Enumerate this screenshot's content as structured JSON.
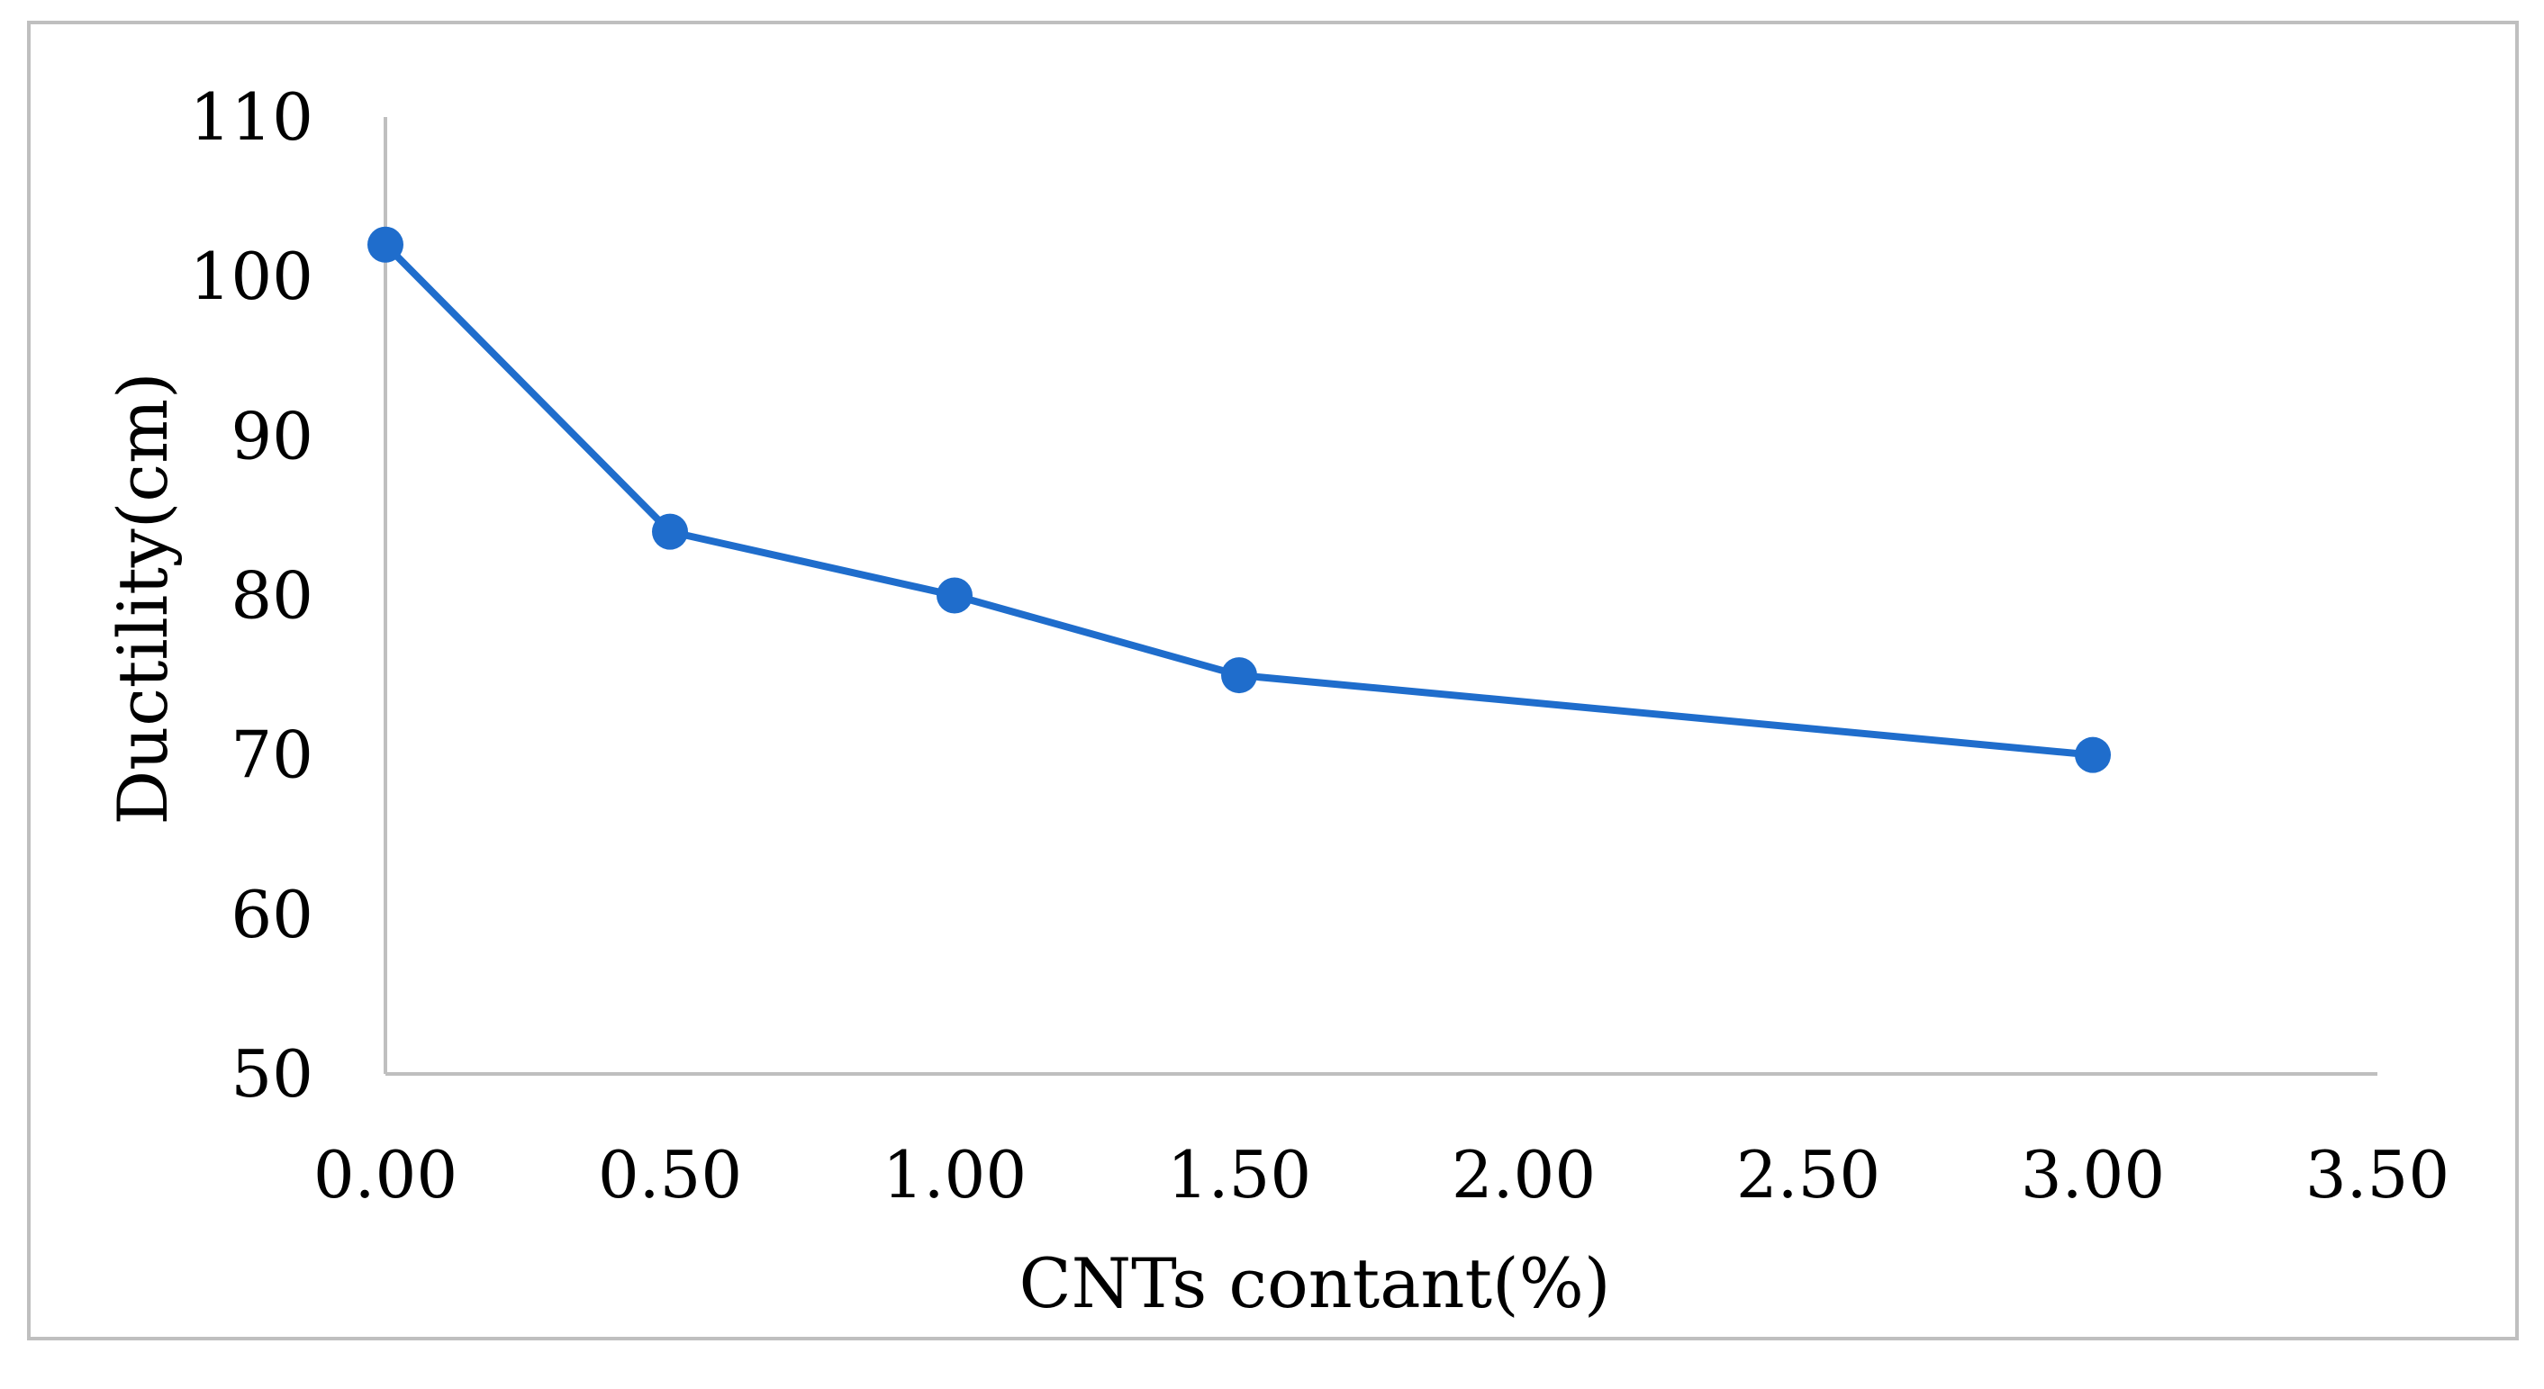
{
  "chart_data": {
    "type": "line",
    "title": "",
    "xlabel": "CNTs contant(%)",
    "ylabel": "Ductility(cm)",
    "xlim": [
      0,
      3.5
    ],
    "ylim": [
      50,
      110
    ],
    "x_ticks": [
      "0.00",
      "0.50",
      "1.00",
      "1.50",
      "2.00",
      "2.50",
      "3.00",
      "3.50"
    ],
    "y_ticks": [
      "50",
      "60",
      "70",
      "80",
      "90",
      "100",
      "110"
    ],
    "grid": false,
    "series": [
      {
        "x": [
          0.0,
          0.5,
          1.0,
          1.5,
          3.0
        ],
        "values": [
          102,
          84,
          80,
          75,
          70
        ],
        "color": "#1f6dcc"
      }
    ],
    "frame_color": "#bfbfbf",
    "axis_color": "#bfbfbf"
  }
}
